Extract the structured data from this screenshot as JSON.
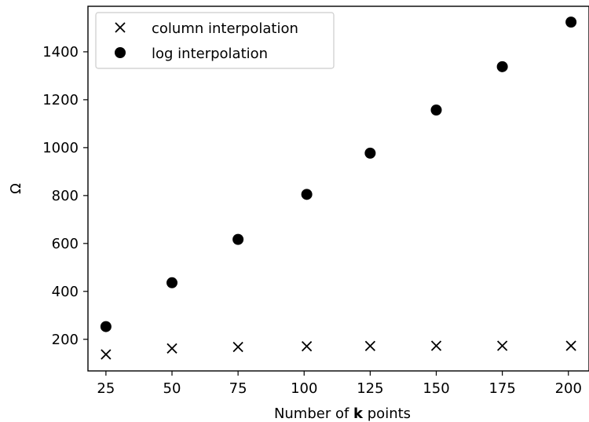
{
  "chart_data": {
    "type": "scatter",
    "title": "",
    "xlabel_parts": [
      "Number of ",
      "k",
      " points"
    ],
    "ylabel": "Ω",
    "xlim": [
      18.2,
      207.8
    ],
    "ylim": [
      68,
      1590
    ],
    "xticks": [
      25,
      50,
      75,
      100,
      125,
      150,
      175,
      200
    ],
    "yticks": [
      200,
      400,
      600,
      800,
      1000,
      1200,
      1400
    ],
    "grid": false,
    "legend_position": "top-left",
    "series": [
      {
        "name": "column interpolation",
        "marker": "x",
        "color": "#000000",
        "x": [
          25,
          50,
          75,
          101,
          125,
          150,
          175,
          201
        ],
        "y": [
          137,
          162,
          168,
          171,
          172,
          173,
          173,
          173
        ]
      },
      {
        "name": "log interpolation",
        "marker": "o",
        "color": "#000000",
        "x": [
          25,
          50,
          75,
          101,
          125,
          150,
          175,
          201
        ],
        "y": [
          253,
          436,
          617,
          805,
          977,
          1157,
          1338,
          1524
        ]
      }
    ]
  }
}
